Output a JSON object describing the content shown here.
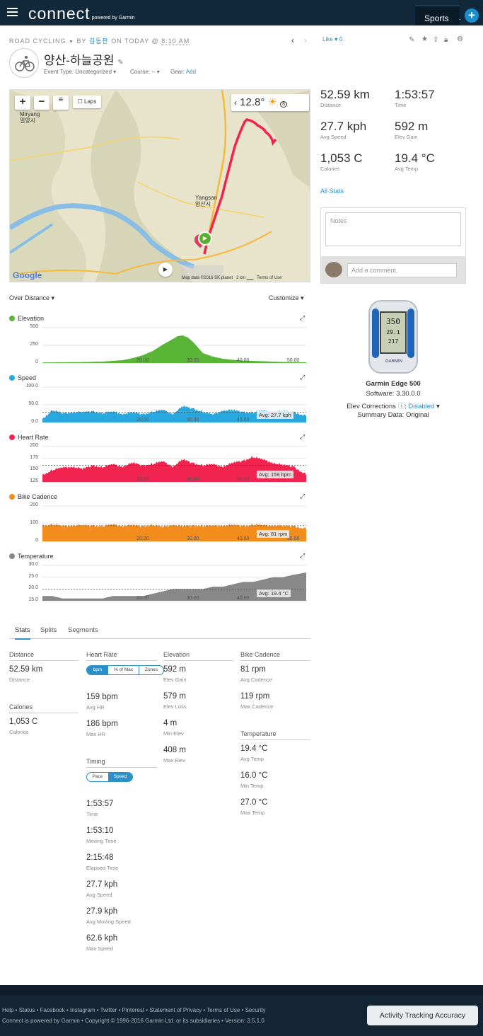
{
  "header": {
    "logo": "connect",
    "powered": "powered by Garmin",
    "sports": "Sports",
    "plus": "+"
  },
  "activity": {
    "sport": "ROAD CYCLING",
    "by": "BY",
    "user": "김동판",
    "on": "ON TODAY @",
    "time": "8:10 AM",
    "title": "양산-하늘공원",
    "event_type_label": "Event Type:",
    "event_type_value": "Uncategorized",
    "course_label": "Course:",
    "course_value": "--",
    "gear_label": "Gear:",
    "gear_value": "Add",
    "like": "Like",
    "like_count": "0"
  },
  "map": {
    "temp": "12.8°",
    "laps": "Laps",
    "city1": "Miryang",
    "city1_ko": "밀양시",
    "city2": "Yangsan",
    "city2_ko": "양산시",
    "data_credit": "Map data ©2016 SK planet",
    "scale": "2 km",
    "terms": "Terms of Use",
    "google": "Google",
    "wind": "8"
  },
  "summary": [
    {
      "value": "52.59 km",
      "label": "Distance"
    },
    {
      "value": "1:53:57",
      "label": "Time"
    },
    {
      "value": "27.7 kph",
      "label": "Avg Speed"
    },
    {
      "value": "592 m",
      "label": "Elev Gain"
    },
    {
      "value": "1,053 C",
      "label": "Calories"
    },
    {
      "value": "19.4 °C",
      "label": "Avg Temp"
    }
  ],
  "all_stats": "All Stats",
  "notes_placeholder": "Notes",
  "comment_placeholder": "Add a comment.",
  "device": {
    "name": "Garmin Edge 500",
    "software": "Software: 3.30.0.0",
    "elev_label": "Elev Corrections",
    "elev_value": "Disabled",
    "summary": "Summary Data: Original",
    "screen_top": "350",
    "screen_mid": "29.1",
    "screen_bot": "217"
  },
  "chart_controls": {
    "over": "Over Distance",
    "customize": "Customize"
  },
  "chart_data": [
    {
      "type": "area",
      "title": "Elevation",
      "color": "#58b536",
      "ylim": [
        0,
        500
      ],
      "yticks": [
        "500",
        "250",
        "0"
      ],
      "xticks": [
        "20.00",
        "30.00",
        "40.00",
        "50.00"
      ],
      "xlim": [
        0,
        52.59
      ],
      "x": [
        0,
        4,
        8,
        12,
        16,
        18,
        20,
        22,
        24,
        26,
        27,
        28,
        29,
        30,
        31,
        32,
        34,
        36,
        38,
        40,
        44,
        48,
        52.59
      ],
      "y": [
        8,
        10,
        14,
        20,
        40,
        70,
        110,
        170,
        260,
        340,
        380,
        390,
        360,
        300,
        220,
        140,
        90,
        60,
        45,
        35,
        25,
        15,
        10
      ]
    },
    {
      "type": "area",
      "title": "Speed",
      "color": "#29a8e0",
      "ylim": [
        0,
        100
      ],
      "yticks": [
        "100.0",
        "50.0",
        "0.0"
      ],
      "xticks": [
        "20.00",
        "30.00",
        "40.00"
      ],
      "xlim": [
        0,
        52.59
      ],
      "avg": "Avg: 27.7 kph",
      "x": [
        0,
        2,
        4,
        6,
        8,
        10,
        12,
        14,
        16,
        18,
        20,
        22,
        24,
        26,
        28,
        30,
        32,
        34,
        36,
        38,
        40,
        42,
        44,
        46,
        48,
        50,
        52.59
      ],
      "y": [
        10,
        35,
        25,
        30,
        28,
        32,
        26,
        30,
        25,
        28,
        24,
        30,
        35,
        25,
        45,
        40,
        30,
        22,
        35,
        34,
        30,
        28,
        33,
        29,
        31,
        30,
        18
      ]
    },
    {
      "type": "area",
      "title": "Heart Rate",
      "color": "#f0244f",
      "ylim": [
        125,
        200
      ],
      "yticks": [
        "200",
        "175",
        "150",
        "125"
      ],
      "xticks": [
        "20.00",
        "30.00",
        "40.00"
      ],
      "xlim": [
        0,
        52.59
      ],
      "avg": "Avg: 159 bpm",
      "x": [
        0,
        2,
        4,
        6,
        8,
        10,
        12,
        14,
        16,
        18,
        20,
        22,
        24,
        26,
        28,
        30,
        32,
        34,
        36,
        38,
        40,
        42,
        44,
        46,
        48,
        50,
        52.59
      ],
      "y": [
        140,
        150,
        155,
        158,
        152,
        160,
        156,
        162,
        158,
        165,
        160,
        163,
        168,
        158,
        172,
        165,
        160,
        162,
        158,
        165,
        170,
        178,
        172,
        166,
        160,
        158,
        140
      ]
    },
    {
      "type": "area",
      "title": "Bike Cadence",
      "color": "#f28c1d",
      "ylim": [
        0,
        200
      ],
      "yticks": [
        "200",
        "100",
        "0"
      ],
      "xticks": [
        "20.00",
        "30.00",
        "40.00",
        "50.00"
      ],
      "xlim": [
        0,
        52.59
      ],
      "avg": "Avg: 81 rpm",
      "x": [
        0,
        2,
        4,
        6,
        8,
        10,
        12,
        14,
        16,
        18,
        20,
        22,
        24,
        26,
        28,
        30,
        32,
        34,
        36,
        38,
        40,
        42,
        44,
        46,
        48,
        50,
        52.59
      ],
      "y": [
        90,
        95,
        85,
        92,
        88,
        90,
        85,
        94,
        88,
        90,
        86,
        92,
        80,
        95,
        84,
        90,
        88,
        86,
        92,
        90,
        88,
        94,
        90,
        92,
        85,
        88,
        70
      ]
    },
    {
      "type": "area",
      "title": "Temperature",
      "color": "#888888",
      "ylim": [
        15,
        30
      ],
      "yticks": [
        "30.0",
        "25.0",
        "20.0",
        "15.0"
      ],
      "xticks": [
        "20.00",
        "30.00",
        "40.00"
      ],
      "xlim": [
        0,
        52.59
      ],
      "avg": "Avg: 19.4 °C",
      "x": [
        0,
        2,
        4,
        6,
        8,
        10,
        12,
        14,
        16,
        18,
        20,
        22,
        24,
        26,
        28,
        30,
        32,
        34,
        36,
        38,
        40,
        42,
        44,
        46,
        48,
        50,
        52.59
      ],
      "y": [
        17,
        17,
        16,
        16,
        16,
        16,
        16,
        17,
        17,
        17,
        17,
        18,
        19,
        20,
        20,
        20,
        20,
        21,
        21,
        22,
        23,
        23,
        24,
        25,
        25,
        26,
        27
      ]
    }
  ],
  "tabs": [
    "Stats",
    "Splits",
    "Segments"
  ],
  "stats": {
    "distance": {
      "head": "Distance",
      "v": "52.59 km",
      "l": "Distance"
    },
    "calories": {
      "head": "Calories",
      "v": "1,053 C",
      "l": "Calories"
    },
    "hr": {
      "head": "Heart Rate",
      "seg": [
        "bpm",
        "% of Max",
        "Zones"
      ],
      "items": [
        {
          "v": "159 bpm",
          "l": "Avg HR"
        },
        {
          "v": "186 bpm",
          "l": "Max HR"
        }
      ]
    },
    "timing": {
      "head": "Timing",
      "seg": [
        "Pace",
        "Speed"
      ],
      "items": [
        {
          "v": "1:53:57",
          "l": "Time"
        },
        {
          "v": "1:53:10",
          "l": "Moving Time"
        },
        {
          "v": "2:15:48",
          "l": "Elapsed Time"
        },
        {
          "v": "27.7 kph",
          "l": "Avg Speed"
        },
        {
          "v": "27.9 kph",
          "l": "Avg Moving Speed"
        },
        {
          "v": "62.6 kph",
          "l": "Max Speed"
        }
      ]
    },
    "elev": {
      "head": "Elevation",
      "items": [
        {
          "v": "592 m",
          "l": "Elev Gain"
        },
        {
          "v": "579 m",
          "l": "Elev Loss"
        },
        {
          "v": "4 m",
          "l": "Min Elev"
        },
        {
          "v": "408 m",
          "l": "Max Elev"
        }
      ]
    },
    "cad": {
      "head": "Bike Cadence",
      "items": [
        {
          "v": "81 rpm",
          "l": "Avg Cadence"
        },
        {
          "v": "119 rpm",
          "l": "Max Cadence"
        }
      ]
    },
    "temp": {
      "head": "Temperature",
      "items": [
        {
          "v": "19.4 °C",
          "l": "Avg Temp"
        },
        {
          "v": "16.0 °C",
          "l": "Min Temp"
        },
        {
          "v": "27.0 °C",
          "l": "Max Temp"
        }
      ]
    }
  },
  "footer": {
    "line1": "Help • Status • Facebook • Instagram • Twitter • Pinterest • Statement of Privacy • Terms of Use • Security",
    "line2": "Connect is powered by Garmin • Copyright © 1996-2016 Garmin Ltd. or its subsidiaries • Version: 3.5.1.0",
    "ata": "Activity Tracking Accuracy"
  }
}
